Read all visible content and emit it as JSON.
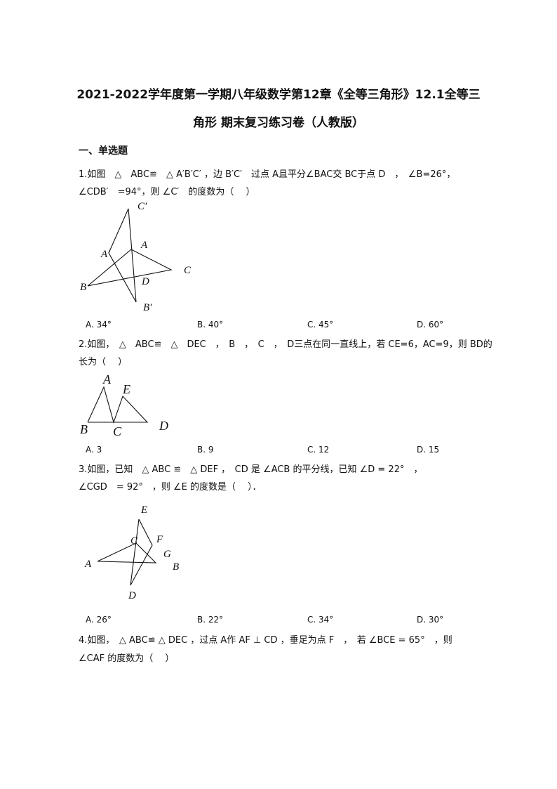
{
  "title": {
    "line1": "2021-2022学年度第一学期八年级数学第12章《全等三角形》12.1全等三",
    "line2": "角形 期末复习练习卷（人教版）"
  },
  "section": "一、单选题",
  "questions": [
    {
      "lines": [
        "1.如图　△　ABC≌　△ A′B′C′ ，边 B′C′　过点 A且平分∠BAC交 BC于点 D　，　∠B=26°，",
        "∠CDB′　=94°，则 ∠C′　的度数为（　 ）"
      ],
      "figure_labels": [
        "C′",
        "A′",
        "A",
        "C",
        "B",
        "D",
        "B′"
      ],
      "options": [
        "A. 34°",
        "B. 40°",
        "C. 45°",
        "D. 60°"
      ]
    },
    {
      "lines": [
        "2.如图，　△　ABC≌　△　DEC　，　B　，　C　，　D三点在同一直线上，若 CE=6，AC=9，则 BD的",
        "长为（　 ）"
      ],
      "figure_labels": [
        "A",
        "E",
        "B",
        "C",
        "D"
      ],
      "options": [
        "A. 3",
        "B. 9",
        "C. 12",
        "D. 15"
      ]
    },
    {
      "lines": [
        "3.如图，已知　△ ABC ≌　△ DEF ，　CD 是 ∠ACB 的平分线，已知 ∠D = 22°　，",
        "∠CGD　= 92°　，则 ∠E 的度数是（　 ）．"
      ],
      "figure_labels": [
        "E",
        "C",
        "F",
        "G",
        "A",
        "B",
        "D"
      ],
      "options": [
        "A. 26°",
        "B. 22°",
        "C. 34°",
        "D. 30°"
      ]
    },
    {
      "lines": [
        "4.如图，　△ ABC≌ △ DEC ，过点 A作 AF ⊥ CD ，垂足为点 F　，　若 ∠BCE = 65°　，则",
        "∠CAF 的度数为（　 ）"
      ]
    }
  ]
}
